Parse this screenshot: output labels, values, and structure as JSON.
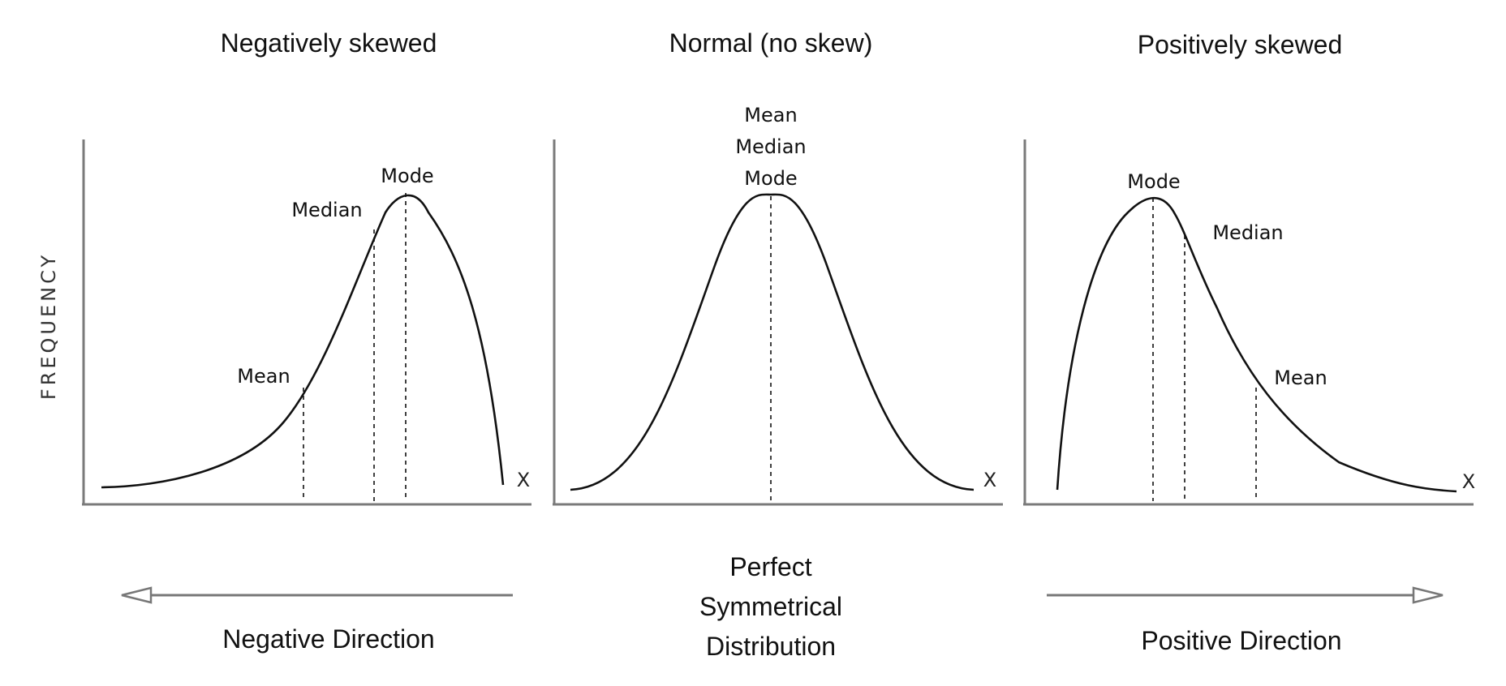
{
  "titles": {
    "negative": "Negatively skewed",
    "normal": "Normal (no skew)",
    "positive": "Positively skewed"
  },
  "y_axis_label": "FREQUENCY",
  "x_axis_letter": "X",
  "markers": {
    "negative": {
      "mean": "Mean",
      "median": "Median",
      "mode": "Mode"
    },
    "normal": {
      "mean": "Mean",
      "median": "Median",
      "mode": "Mode"
    },
    "positive": {
      "mode": "Mode",
      "median": "Median",
      "mean": "Mean"
    }
  },
  "bottom": {
    "negative_direction": "Negative Direction",
    "symmetric_lines": [
      "Perfect",
      "Symmetrical",
      "Distribution"
    ],
    "positive_direction": "Positive Direction"
  },
  "colors": {
    "curve": "#111111",
    "axis": "#7a7a7a",
    "arrow": "#777777"
  }
}
